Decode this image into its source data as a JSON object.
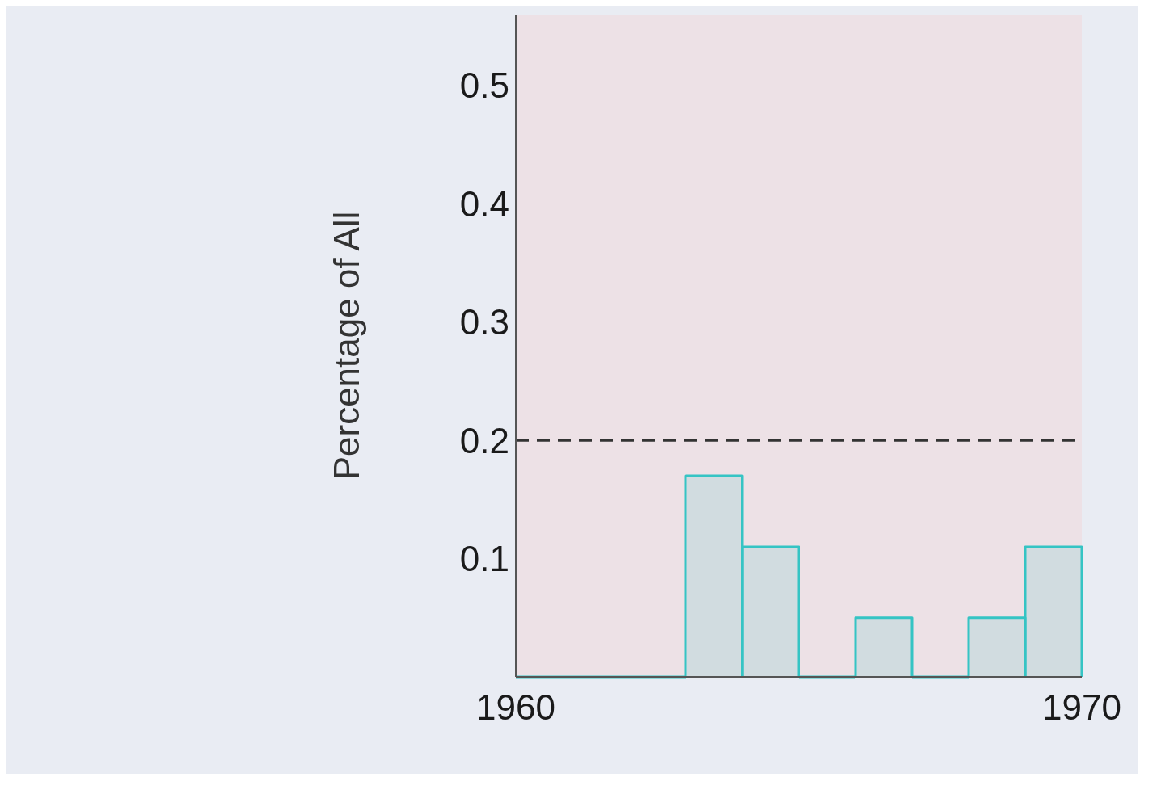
{
  "chart_data": {
    "type": "histogram",
    "ylabel": "Percentage of All",
    "bins": [
      1960,
      1961,
      1962,
      1963,
      1964,
      1965,
      1966,
      1967,
      1968,
      1969,
      1970
    ],
    "values": [
      0,
      0,
      0,
      0.17,
      0.11,
      0,
      0.05,
      0,
      0.05,
      0.11
    ],
    "color": "#35c4c4",
    "xlim": [
      1960,
      1970
    ],
    "xticks": [
      1960,
      1970
    ],
    "ylim": [
      0,
      0.56
    ],
    "yticks": [
      0.1,
      0.2,
      0.3,
      0.4,
      0.5
    ],
    "ref_lines": [
      {
        "axis": "y",
        "value": 0.2,
        "color": "#333333",
        "line_style": "dashed"
      }
    ],
    "grid": false
  }
}
